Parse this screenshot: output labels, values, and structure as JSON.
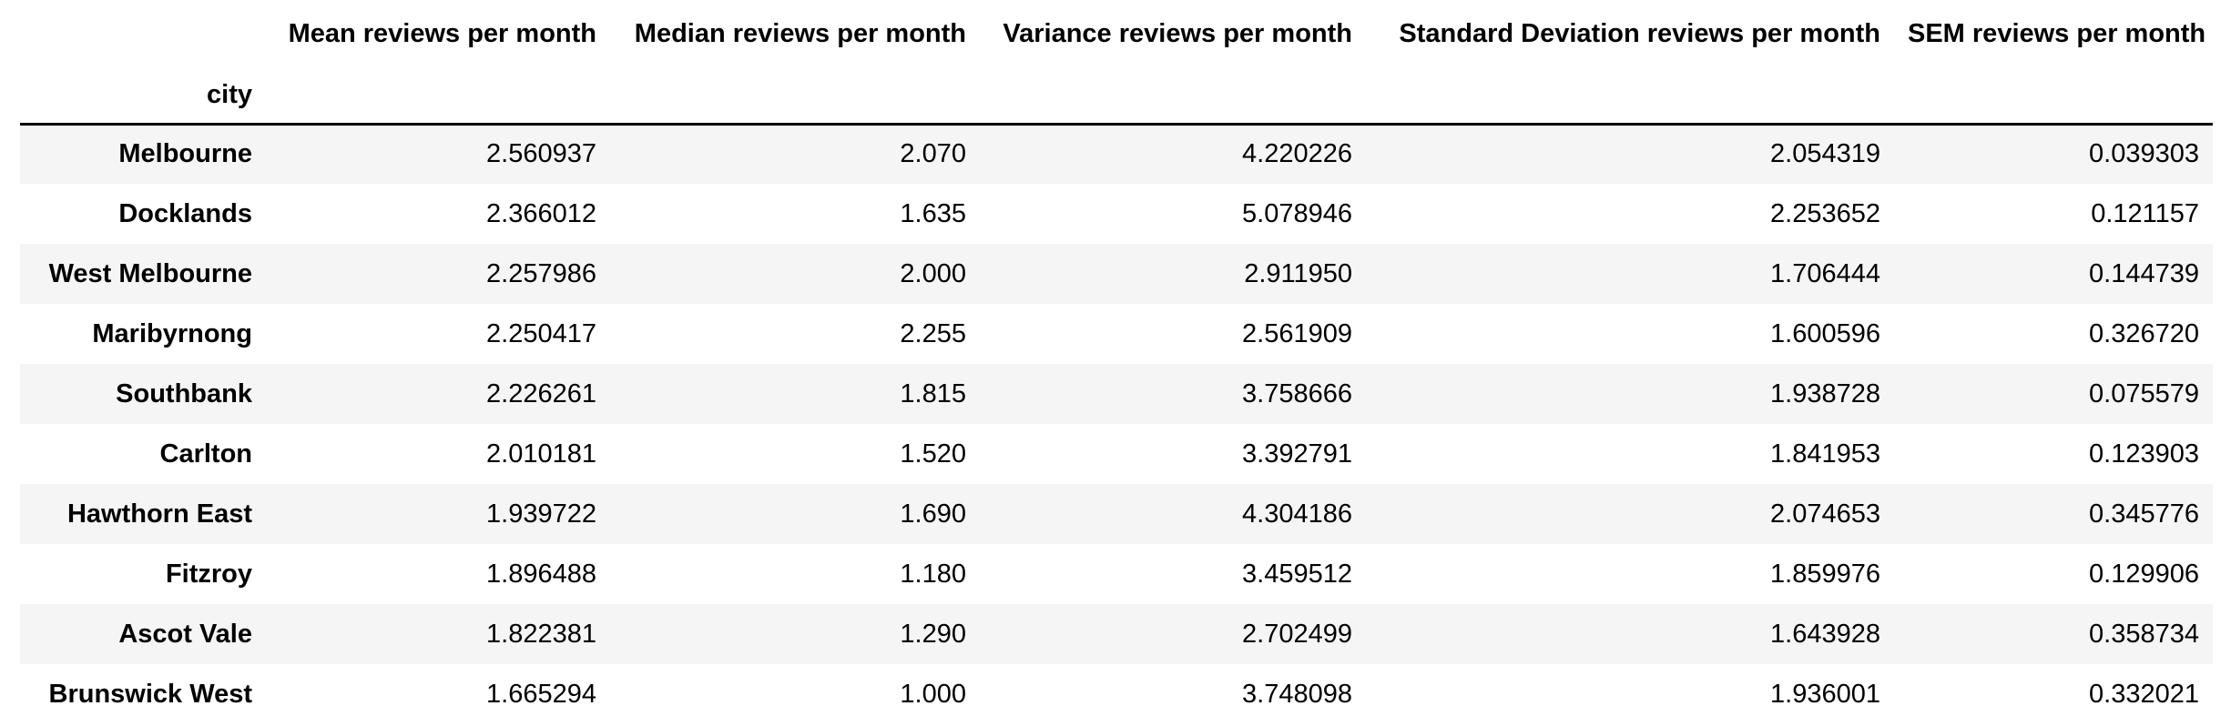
{
  "table": {
    "index_name": "city",
    "columns": [
      "Mean reviews per month",
      "Median reviews per month",
      "Variance reviews per month",
      "Standard Deviation reviews per month",
      "SEM reviews per month"
    ],
    "rows": [
      {
        "city": "Melbourne",
        "values": [
          "2.560937",
          "2.070",
          "4.220226",
          "2.054319",
          "0.039303"
        ]
      },
      {
        "city": "Docklands",
        "values": [
          "2.366012",
          "1.635",
          "5.078946",
          "2.253652",
          "0.121157"
        ]
      },
      {
        "city": "West Melbourne",
        "values": [
          "2.257986",
          "2.000",
          "2.911950",
          "1.706444",
          "0.144739"
        ]
      },
      {
        "city": "Maribyrnong",
        "values": [
          "2.250417",
          "2.255",
          "2.561909",
          "1.600596",
          "0.326720"
        ]
      },
      {
        "city": "Southbank",
        "values": [
          "2.226261",
          "1.815",
          "3.758666",
          "1.938728",
          "0.075579"
        ]
      },
      {
        "city": "Carlton",
        "values": [
          "2.010181",
          "1.520",
          "3.392791",
          "1.841953",
          "0.123903"
        ]
      },
      {
        "city": "Hawthorn East",
        "values": [
          "1.939722",
          "1.690",
          "4.304186",
          "2.074653",
          "0.345776"
        ]
      },
      {
        "city": "Fitzroy",
        "values": [
          "1.896488",
          "1.180",
          "3.459512",
          "1.859976",
          "0.129906"
        ]
      },
      {
        "city": "Ascot Vale",
        "values": [
          "1.822381",
          "1.290",
          "2.702499",
          "1.643928",
          "0.358734"
        ]
      },
      {
        "city": "Brunswick West",
        "values": [
          "1.665294",
          "1.000",
          "3.748098",
          "1.936001",
          "0.332021"
        ]
      }
    ]
  }
}
